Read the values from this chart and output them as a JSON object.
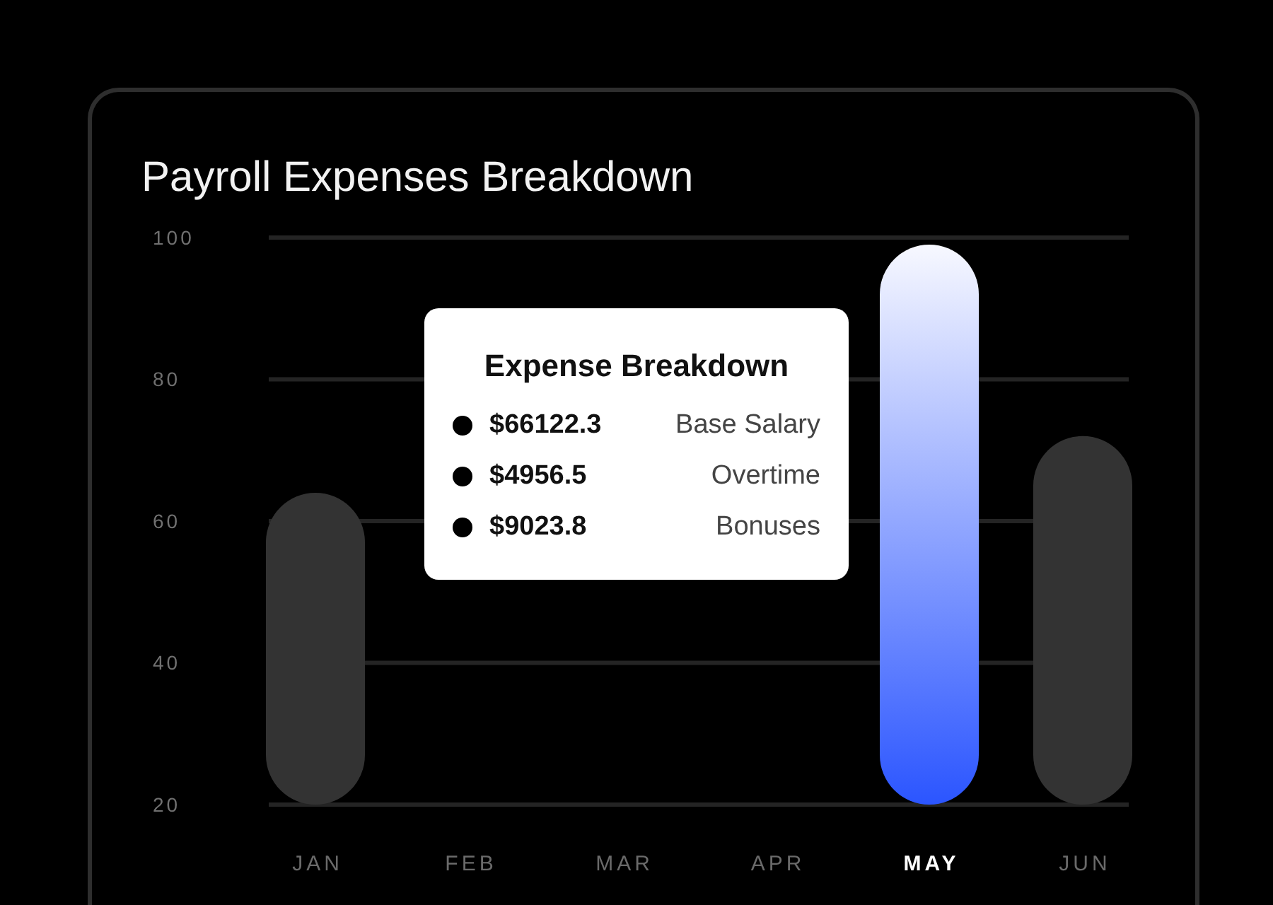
{
  "chart_data": {
    "type": "bar",
    "title": "Payroll Expenses Breakdown",
    "categories": [
      "JAN",
      "FEB",
      "MAR",
      "APR",
      "MAY",
      "JUN"
    ],
    "values": [
      64,
      null,
      null,
      null,
      99,
      72
    ],
    "colors": [
      "#333333",
      "#333333",
      "#333333",
      "#333333",
      "#2b55ff",
      "#333333"
    ],
    "ylim": [
      20,
      100
    ],
    "yticks": [
      20,
      40,
      60,
      80,
      100
    ],
    "grid": "y",
    "annotations": [
      "Expense Breakdown",
      "$66122.3",
      "Base Salary",
      "$4956.5",
      "Overtime",
      "$9023.8",
      "Bonuses"
    ]
  }
}
